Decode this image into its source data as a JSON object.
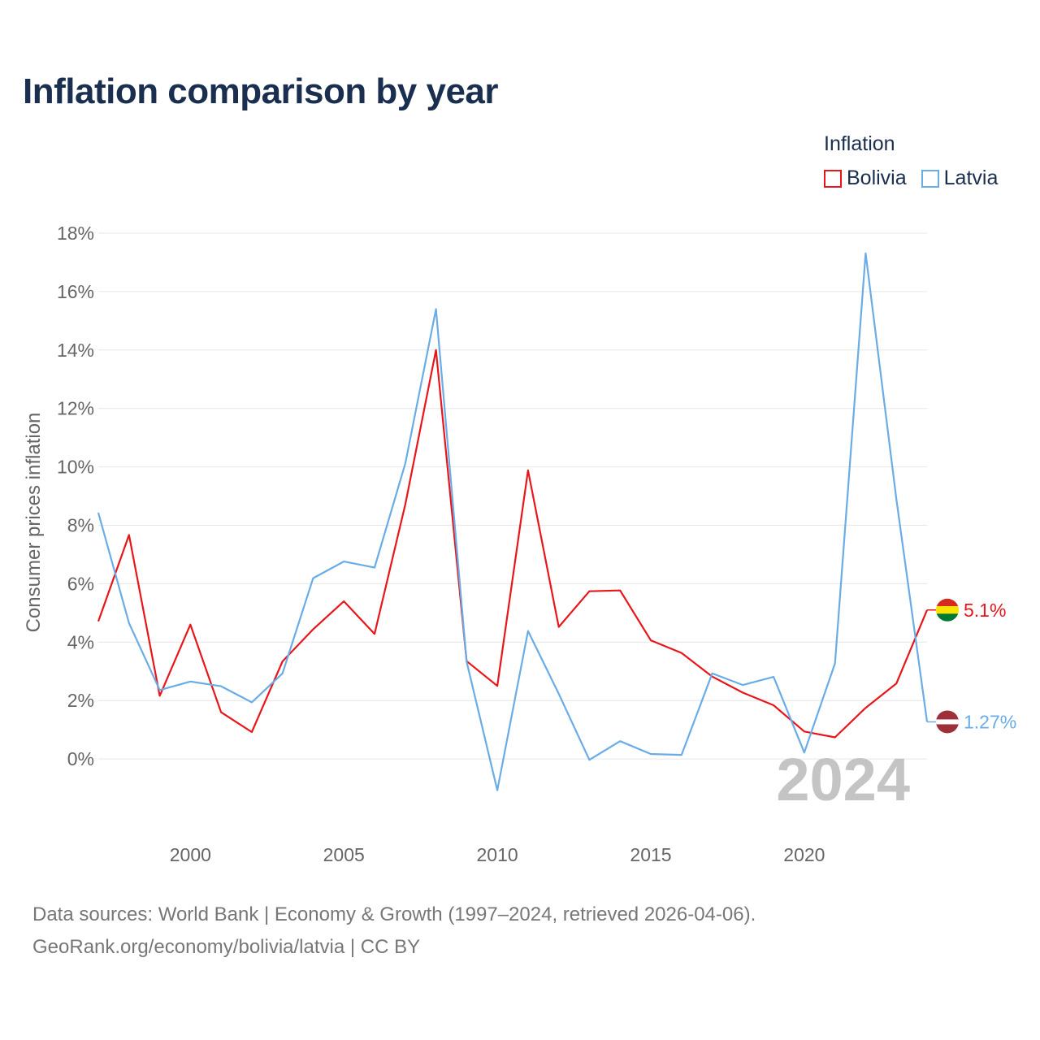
{
  "title": "Inflation comparison by year",
  "legend": {
    "title": "Inflation",
    "items": [
      {
        "label": "Bolivia",
        "color": "#e8161a"
      },
      {
        "label": "Latvia",
        "color": "#6aace6"
      }
    ]
  },
  "source": {
    "line1": "Data sources: World Bank | Economy & Growth (1997–2024, retrieved 2026-04-06).",
    "line2": "GeoRank.org/economy/bolivia/latvia | CC BY"
  },
  "chart_data": {
    "type": "line",
    "title": "Inflation comparison by year",
    "xlabel": "",
    "ylabel": "Consumer prices inflation",
    "xlim": [
      1997,
      2024
    ],
    "ylim": [
      -2,
      18
    ],
    "yticks": [
      0,
      2,
      4,
      6,
      8,
      10,
      12,
      14,
      16,
      18
    ],
    "ytick_labels": [
      "0%",
      "2%",
      "4%",
      "6%",
      "8%",
      "10%",
      "12%",
      "14%",
      "16%",
      "18%"
    ],
    "xticks": [
      2000,
      2005,
      2010,
      2015,
      2020
    ],
    "xtick_labels": [
      "2000",
      "2005",
      "2010",
      "2015",
      "2020"
    ],
    "grid": true,
    "legend_position": "top-right",
    "year_watermark": "2024",
    "x": [
      1997,
      1998,
      1999,
      2000,
      2001,
      2002,
      2003,
      2004,
      2005,
      2006,
      2007,
      2008,
      2009,
      2010,
      2011,
      2012,
      2013,
      2014,
      2015,
      2016,
      2017,
      2018,
      2019,
      2020,
      2021,
      2022,
      2023,
      2024
    ],
    "series": [
      {
        "name": "Bolivia",
        "color": "#e8161a",
        "end_label": "5.1%",
        "values": [
          4.71,
          7.67,
          2.16,
          4.6,
          1.6,
          0.92,
          3.34,
          4.44,
          5.4,
          4.28,
          8.71,
          14.0,
          3.35,
          2.5,
          9.88,
          4.52,
          5.74,
          5.77,
          4.06,
          3.63,
          2.82,
          2.27,
          1.84,
          0.94,
          0.74,
          1.75,
          2.58,
          5.1
        ]
      },
      {
        "name": "Latvia",
        "color": "#6aace6",
        "end_label": "1.27%",
        "values": [
          8.43,
          4.65,
          2.36,
          2.65,
          2.49,
          1.94,
          2.93,
          6.19,
          6.76,
          6.55,
          10.11,
          15.4,
          3.33,
          -1.07,
          4.38,
          2.23,
          -0.03,
          0.61,
          0.17,
          0.14,
          2.93,
          2.53,
          2.81,
          0.22,
          3.27,
          17.31,
          8.9,
          1.27
        ]
      }
    ]
  }
}
